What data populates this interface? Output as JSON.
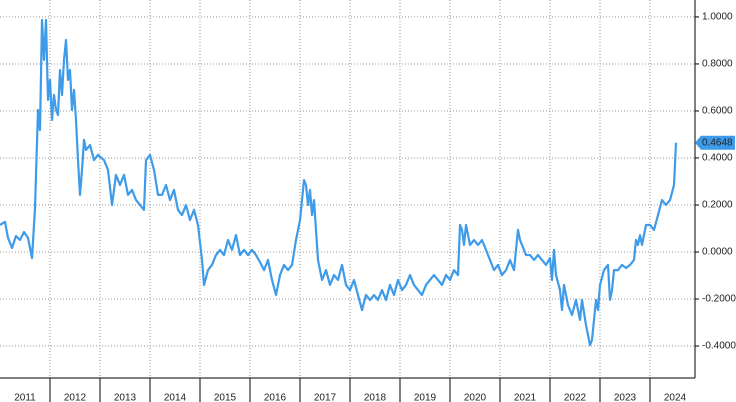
{
  "chart_data": {
    "type": "line",
    "color": "#3d9be9",
    "grid": true,
    "xlim": [
      2011,
      2024.9
    ],
    "ylim": [
      -0.536,
      1.072
    ],
    "xticks": [
      {
        "value": 2011.5,
        "label": "2011"
      },
      {
        "value": 2012.5,
        "label": "2012"
      },
      {
        "value": 2013.5,
        "label": "2013"
      },
      {
        "value": 2014.5,
        "label": "2014"
      },
      {
        "value": 2015.5,
        "label": "2015"
      },
      {
        "value": 2016.5,
        "label": "2016"
      },
      {
        "value": 2017.5,
        "label": "2017"
      },
      {
        "value": 2018.5,
        "label": "2018"
      },
      {
        "value": 2019.5,
        "label": "2019"
      },
      {
        "value": 2020.5,
        "label": "2020"
      },
      {
        "value": 2021.5,
        "label": "2021"
      },
      {
        "value": 2022.5,
        "label": "2022"
      },
      {
        "value": 2023.5,
        "label": "2023"
      },
      {
        "value": 2024.5,
        "label": "2024"
      }
    ],
    "xgrid": [
      2012,
      2013,
      2014,
      2015,
      2016,
      2017,
      2018,
      2019,
      2020,
      2021,
      2022,
      2023,
      2024
    ],
    "yticks": [
      {
        "value": 1.0,
        "label": "1.0000"
      },
      {
        "value": 0.8,
        "label": "0.8000"
      },
      {
        "value": 0.6,
        "label": "0.6000"
      },
      {
        "value": 0.4,
        "label": "0.4000"
      },
      {
        "value": 0.2,
        "label": "0.2000"
      },
      {
        "value": 0,
        "label": "0.0000"
      },
      {
        "value": -0.2,
        "label": "-0.2000"
      },
      {
        "value": -0.4,
        "label": "-0.4000"
      }
    ],
    "last_value": {
      "value": 0.4648,
      "label": "0.4648"
    },
    "x": [
      2011.0,
      2011.1,
      2011.16,
      2011.24,
      2011.32,
      2011.4,
      2011.48,
      2011.56,
      2011.64,
      2011.7,
      2011.76,
      2011.8,
      2011.84,
      2011.88,
      2011.92,
      2011.96,
      2012.0,
      2012.04,
      2012.08,
      2012.12,
      2012.16,
      2012.2,
      2012.24,
      2012.28,
      2012.32,
      2012.36,
      2012.4,
      2012.44,
      2012.48,
      2012.52,
      2012.56,
      2012.6,
      2012.64,
      2012.68,
      2012.72,
      2012.8,
      2012.88,
      2012.96,
      2013.08,
      2013.16,
      2013.24,
      2013.32,
      2013.4,
      2013.48,
      2013.56,
      2013.64,
      2013.72,
      2013.8,
      2013.88,
      2013.92,
      2014.0,
      2014.08,
      2014.16,
      2014.24,
      2014.32,
      2014.4,
      2014.48,
      2014.56,
      2014.64,
      2014.72,
      2014.8,
      2014.88,
      2014.96,
      2015.04,
      2015.08,
      2015.16,
      2015.24,
      2015.32,
      2015.4,
      2015.48,
      2015.56,
      2015.64,
      2015.72,
      2015.8,
      2015.88,
      2015.96,
      2016.04,
      2016.12,
      2016.2,
      2016.28,
      2016.36,
      2016.44,
      2016.52,
      2016.6,
      2016.68,
      2016.76,
      2016.84,
      2016.92,
      2017.0,
      2017.08,
      2017.12,
      2017.16,
      2017.2,
      2017.24,
      2017.28,
      2017.36,
      2017.44,
      2017.52,
      2017.6,
      2017.68,
      2017.76,
      2017.84,
      2017.92,
      2018.0,
      2018.08,
      2018.16,
      2018.24,
      2018.32,
      2018.4,
      2018.48,
      2018.56,
      2018.64,
      2018.72,
      2018.8,
      2018.88,
      2018.96,
      2019.04,
      2019.12,
      2019.2,
      2019.28,
      2019.36,
      2019.44,
      2019.52,
      2019.6,
      2019.68,
      2019.76,
      2019.84,
      2019.92,
      2020.0,
      2020.08,
      2020.16,
      2020.2,
      2020.24,
      2020.28,
      2020.32,
      2020.4,
      2020.48,
      2020.56,
      2020.64,
      2020.72,
      2020.8,
      2020.88,
      2020.96,
      2021.04,
      2021.12,
      2021.2,
      2021.28,
      2021.36,
      2021.4,
      2021.44,
      2021.52,
      2021.6,
      2021.68,
      2021.76,
      2021.84,
      2021.92,
      2022.0,
      2022.04,
      2022.08,
      2022.12,
      2022.2,
      2022.24,
      2022.28,
      2022.36,
      2022.44,
      2022.52,
      2022.6,
      2022.64,
      2022.72,
      2022.8,
      2022.84,
      2022.88,
      2022.92,
      2022.96,
      2023.0,
      2023.08,
      2023.16,
      2023.2,
      2023.24,
      2023.28,
      2023.36,
      2023.44,
      2023.52,
      2023.6,
      2023.68,
      2023.72,
      2023.76,
      2023.8,
      2023.84,
      2023.92,
      2024.0,
      2024.08,
      2024.16,
      2024.24,
      2024.32,
      2024.4,
      2024.48,
      2024.52
    ],
    "values": [
      0.115,
      0.128,
      0.06,
      0.017,
      0.068,
      0.051,
      0.085,
      0.06,
      -0.026,
      0.187,
      0.604,
      0.519,
      0.987,
      0.817,
      0.987,
      0.647,
      0.732,
      0.562,
      0.668,
      0.604,
      0.583,
      0.774,
      0.668,
      0.817,
      0.902,
      0.732,
      0.774,
      0.604,
      0.689,
      0.562,
      0.391,
      0.243,
      0.349,
      0.477,
      0.434,
      0.455,
      0.391,
      0.413,
      0.391,
      0.349,
      0.2,
      0.328,
      0.285,
      0.328,
      0.243,
      0.264,
      0.221,
      0.2,
      0.179,
      0.391,
      0.413,
      0.349,
      0.243,
      0.243,
      0.285,
      0.221,
      0.264,
      0.179,
      0.157,
      0.2,
      0.136,
      0.179,
      0.115,
      -0.034,
      -0.14,
      -0.077,
      -0.055,
      -0.013,
      0.009,
      -0.013,
      0.051,
      0.009,
      0.072,
      -0.013,
      0.009,
      -0.013,
      0.009,
      -0.013,
      -0.043,
      -0.077,
      -0.034,
      -0.119,
      -0.183,
      -0.098,
      -0.055,
      -0.077,
      -0.055,
      0.051,
      0.136,
      0.306,
      0.285,
      0.2,
      0.264,
      0.157,
      0.221,
      -0.034,
      -0.119,
      -0.077,
      -0.14,
      -0.098,
      -0.119,
      -0.055,
      -0.14,
      -0.162,
      -0.119,
      -0.183,
      -0.247,
      -0.183,
      -0.204,
      -0.183,
      -0.204,
      -0.162,
      -0.204,
      -0.14,
      -0.183,
      -0.119,
      -0.162,
      -0.14,
      -0.098,
      -0.14,
      -0.162,
      -0.183,
      -0.14,
      -0.119,
      -0.098,
      -0.119,
      -0.14,
      -0.098,
      -0.119,
      -0.077,
      -0.098,
      0.115,
      0.094,
      0.03,
      0.115,
      0.03,
      0.051,
      0.03,
      0.051,
      0.009,
      -0.034,
      -0.077,
      -0.055,
      -0.098,
      -0.077,
      -0.034,
      -0.077,
      0.094,
      0.051,
      0.03,
      -0.013,
      -0.013,
      -0.034,
      -0.013,
      -0.034,
      -0.055,
      -0.026,
      -0.119,
      0.009,
      -0.098,
      -0.162,
      -0.247,
      -0.14,
      -0.226,
      -0.268,
      -0.204,
      -0.289,
      -0.204,
      -0.311,
      -0.396,
      -0.374,
      -0.289,
      -0.204,
      -0.247,
      -0.14,
      -0.077,
      -0.055,
      -0.204,
      -0.162,
      -0.077,
      -0.077,
      -0.055,
      -0.068,
      -0.055,
      -0.034,
      0.051,
      0.03,
      0.072,
      0.03,
      0.115,
      0.115,
      0.094,
      0.157,
      0.221,
      0.2,
      0.221,
      0.285,
      0.4648
    ]
  }
}
